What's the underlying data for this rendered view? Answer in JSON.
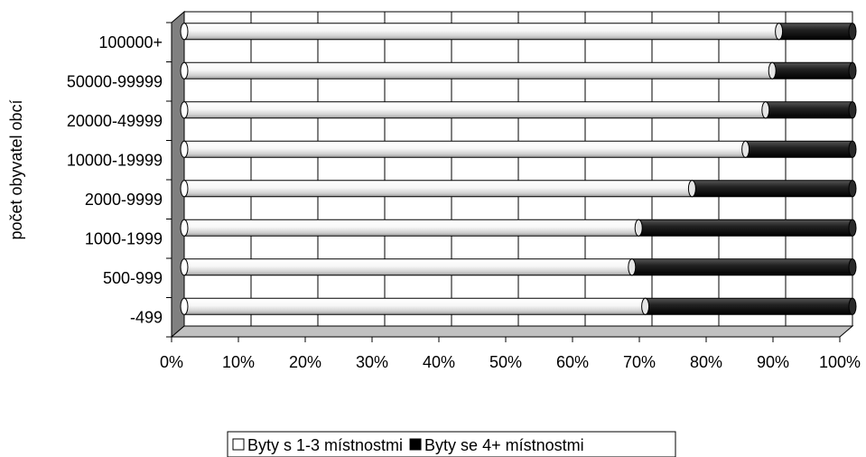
{
  "chart_data": {
    "type": "bar",
    "orientation": "horizontal",
    "stacked": "percent",
    "categories": [
      "-499",
      "500-999",
      "1000-1999",
      "2000-9999",
      "10000-19999",
      "20000-49999",
      "50000-99999",
      "100000+"
    ],
    "series": [
      {
        "name": "Byty s 1-3 místnostmi",
        "color": "#f0f0f0",
        "values": [
          69,
          67,
          68,
          76,
          84,
          87,
          88,
          89
        ]
      },
      {
        "name": "Byty se 4+ místnostmi",
        "color": "#1a1a1a",
        "values": [
          31,
          33,
          32,
          24,
          16,
          13,
          12,
          11
        ]
      }
    ],
    "xlim": [
      0,
      100
    ],
    "x_ticks": [
      "0%",
      "10%",
      "20%",
      "30%",
      "40%",
      "50%",
      "60%",
      "70%",
      "80%",
      "90%",
      "100%"
    ],
    "xlabel": "",
    "ylabel": "počet obyvatel obcí",
    "grid": "vertical",
    "legend_position": "bottom"
  }
}
